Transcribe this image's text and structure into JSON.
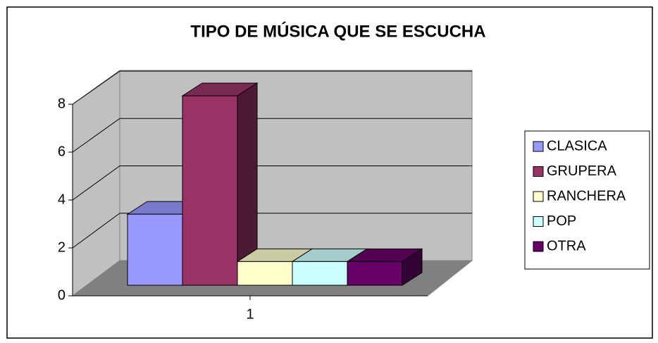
{
  "chart_data": {
    "type": "bar3d",
    "title": "TIPO DE MÚSICA QUE SE ESCUCHA",
    "categories": [
      "1"
    ],
    "series": [
      {
        "name": "CLASICA",
        "color": "#9999ff",
        "values": [
          3
        ]
      },
      {
        "name": "GRUPERA",
        "color": "#993366",
        "values": [
          8
        ]
      },
      {
        "name": "RANCHERA",
        "color": "#ffffcc",
        "values": [
          1
        ]
      },
      {
        "name": "POP",
        "color": "#ccffff",
        "values": [
          1
        ]
      },
      {
        "name": "OTRA",
        "color": "#660066",
        "values": [
          1
        ]
      }
    ],
    "ylim": [
      0,
      8
    ],
    "yticks": [
      0,
      2,
      4,
      6,
      8
    ],
    "grid": true,
    "legend": "right"
  }
}
